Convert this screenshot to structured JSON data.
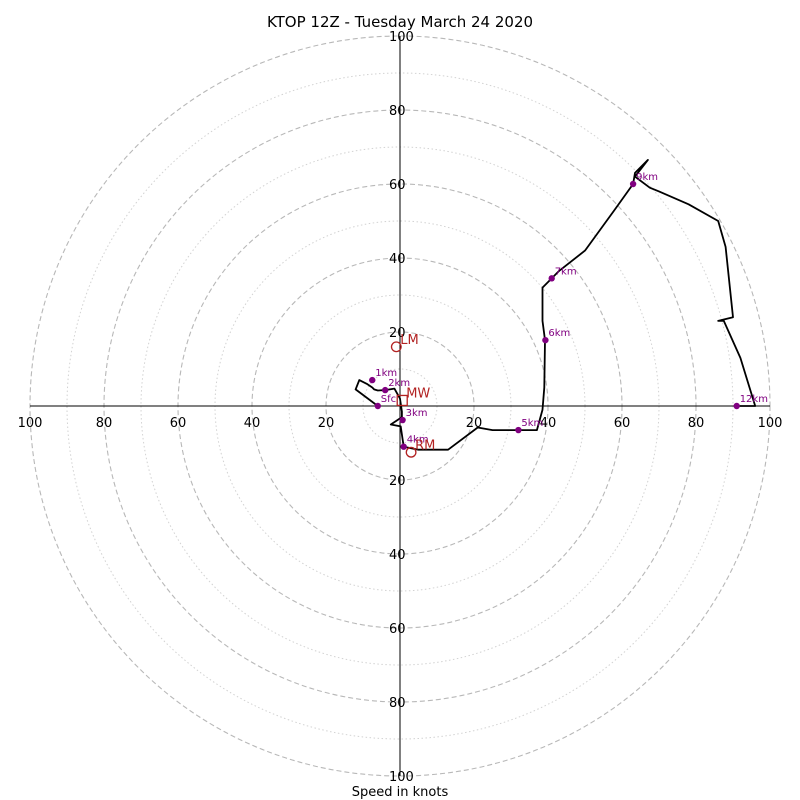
{
  "chart_data": {
    "type": "scatter",
    "subtype": "hodograph",
    "title": "KTOP 12Z - Tuesday March 24 2020",
    "xlabel": "Speed in knots",
    "ylabel": "",
    "xlim": [
      -100,
      100
    ],
    "ylim": [
      -100,
      100
    ],
    "rings": [
      10,
      20,
      30,
      40,
      50,
      60,
      70,
      80,
      90,
      100
    ],
    "major_rings": [
      20,
      40,
      60,
      80,
      100
    ],
    "grid": true,
    "x_ticks": [
      {
        "value": -100,
        "label": "100"
      },
      {
        "value": -80,
        "label": "80"
      },
      {
        "value": -60,
        "label": "60"
      },
      {
        "value": -40,
        "label": "40"
      },
      {
        "value": -20,
        "label": "20"
      },
      {
        "value": 20,
        "label": "20"
      },
      {
        "value": 40,
        "label": "40"
      },
      {
        "value": 60,
        "label": "60"
      },
      {
        "value": 80,
        "label": "80"
      },
      {
        "value": 100,
        "label": "100"
      }
    ],
    "y_ticks": [
      {
        "value": 100,
        "label": "100"
      },
      {
        "value": 80,
        "label": "80"
      },
      {
        "value": 60,
        "label": "60"
      },
      {
        "value": 40,
        "label": "40"
      },
      {
        "value": 20,
        "label": "20"
      },
      {
        "value": -20,
        "label": "20"
      },
      {
        "value": -40,
        "label": "40"
      },
      {
        "value": -60,
        "label": "60"
      },
      {
        "value": -80,
        "label": "80"
      },
      {
        "value": -100,
        "label": "100"
      }
    ],
    "trace": {
      "color": "#000000",
      "points": [
        [
          -6,
          0
        ],
        [
          -12,
          4.5
        ],
        [
          -11,
          7
        ],
        [
          -9,
          6
        ],
        [
          -7.5,
          5
        ],
        [
          -7,
          4.5
        ],
        [
          -6,
          4.2
        ],
        [
          -4,
          4.3
        ],
        [
          -1.5,
          4.7
        ],
        [
          0,
          2
        ],
        [
          0.5,
          -1.5
        ],
        [
          0.5,
          -3
        ],
        [
          -2.5,
          -5
        ],
        [
          0.2,
          -5.5
        ],
        [
          1,
          -11
        ],
        [
          5,
          -11.8
        ],
        [
          13,
          -11.8
        ],
        [
          21,
          -5.8
        ],
        [
          25,
          -6.5
        ],
        [
          31,
          -6.5
        ],
        [
          37,
          -6.5
        ],
        [
          38.5,
          -1
        ],
        [
          39,
          5
        ],
        [
          39.2,
          17.8
        ],
        [
          38.5,
          23
        ],
        [
          38.5,
          32
        ],
        [
          41,
          34.5
        ],
        [
          43,
          36.5
        ],
        [
          50,
          42
        ],
        [
          58,
          53
        ],
        [
          63,
          60
        ],
        [
          63.5,
          63
        ],
        [
          67,
          66.5
        ],
        [
          63.5,
          62
        ],
        [
          67.5,
          59
        ],
        [
          70,
          58
        ],
        [
          78,
          54.5
        ],
        [
          86,
          50
        ],
        [
          88,
          43
        ],
        [
          90,
          24
        ],
        [
          86,
          23
        ],
        [
          87.5,
          23
        ],
        [
          92,
          13
        ],
        [
          96,
          0
        ],
        [
          91,
          0
        ]
      ]
    },
    "height_markers": [
      {
        "label": "Sfc",
        "u": -6,
        "v": 0
      },
      {
        "label": "1km",
        "u": -7.5,
        "v": 7
      },
      {
        "label": "2km",
        "u": -4,
        "v": 4.3
      },
      {
        "label": "3km",
        "u": 0.7,
        "v": -3.8
      },
      {
        "label": "4km",
        "u": 1,
        "v": -11
      },
      {
        "label": "5km",
        "u": 32,
        "v": -6.5
      },
      {
        "label": "6km",
        "u": 39.3,
        "v": 17.8
      },
      {
        "label": "7km",
        "u": 41,
        "v": 34.5
      },
      {
        "label": "9km",
        "u": 63,
        "v": 60
      },
      {
        "label": "12km",
        "u": 91,
        "v": 0
      }
    ],
    "storm_motion": [
      {
        "label": "LM",
        "u": -1,
        "v": 16,
        "shape": "circle"
      },
      {
        "label": "MW",
        "u": 0.6,
        "v": 1.5,
        "shape": "square"
      },
      {
        "label": "RM",
        "u": 3,
        "v": -12.5,
        "shape": "circle"
      }
    ],
    "colors": {
      "trace": "#000000",
      "height_markers": "#800080",
      "storm_motion": "#b22222",
      "grid_major": "#b8b8b8",
      "grid_minor": "#d2d2d2"
    }
  }
}
